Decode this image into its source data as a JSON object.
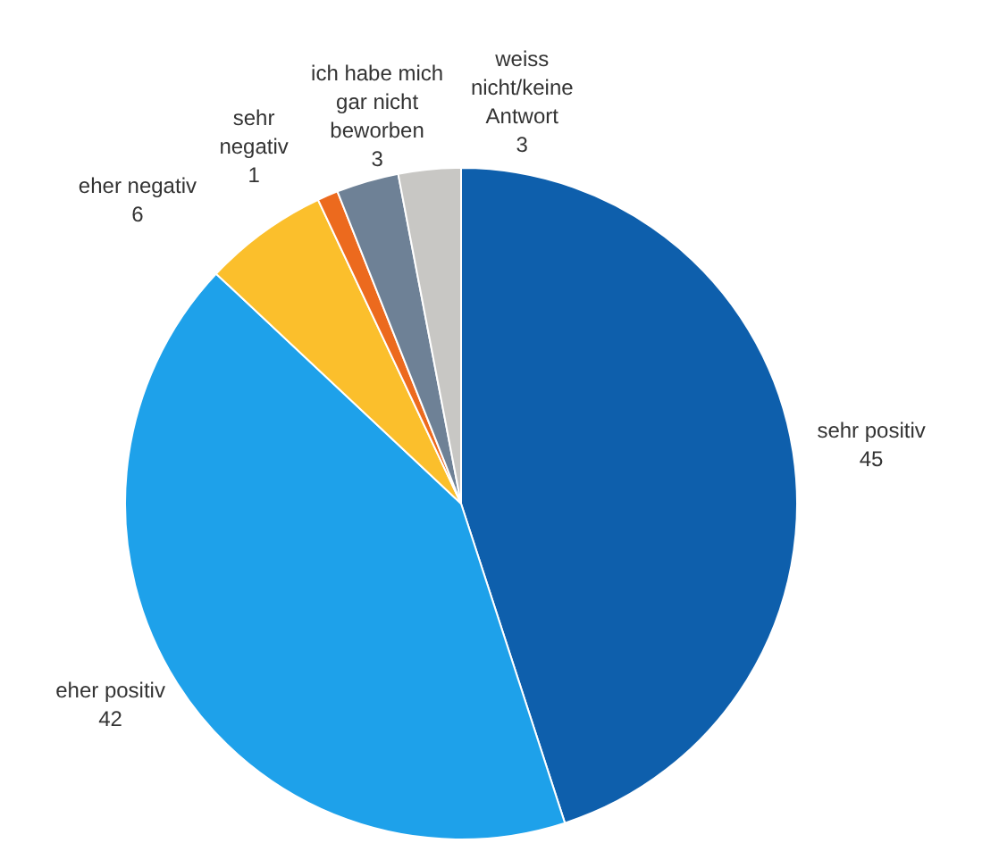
{
  "chart_data": {
    "type": "pie",
    "categories": [
      "sehr positiv",
      "eher positiv",
      "eher negativ",
      "sehr\nnegativ",
      "ich habe mich\ngar nicht\nbeworben",
      "weiss\nnicht/keine\nAntwort"
    ],
    "values": [
      45,
      42,
      6,
      1,
      3,
      3
    ],
    "colors": [
      "#0e5fac",
      "#1ea1ea",
      "#fbbf2c",
      "#ec6a1e",
      "#6e8196",
      "#c8c7c4"
    ],
    "data_labels": true
  }
}
